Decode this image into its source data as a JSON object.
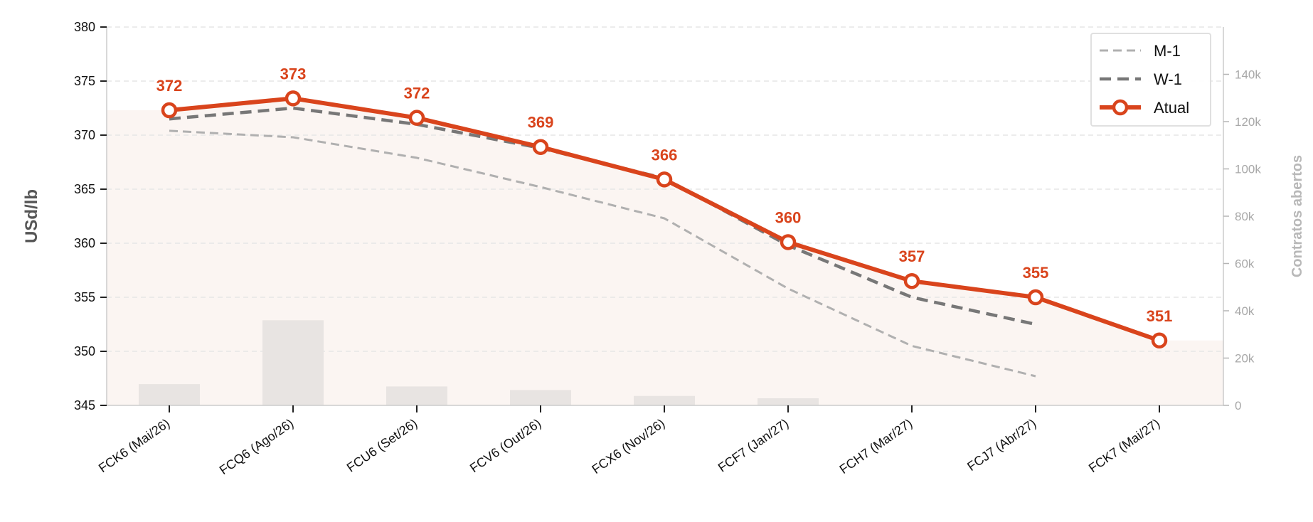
{
  "chart_data": {
    "type": "line",
    "categories": [
      "FCK6 (Mai/26)",
      "FCQ6 (Ago/26)",
      "FCU6 (Set/26)",
      "FCV6 (Out/26)",
      "FCX6 (Nov/26)",
      "FCF7 (Jan/27)",
      "FCH7 (Mar/27)",
      "FCJ7 (Abr/27)",
      "FCK7 (Mai/27)"
    ],
    "ylabel": "USd/lb",
    "ylim": [
      345,
      380
    ],
    "yticks": [
      345,
      350,
      355,
      360,
      365,
      370,
      375,
      380
    ],
    "y2label": "Contratos abertos",
    "y2lim": [
      0,
      160000
    ],
    "y2ticks": [
      0,
      20000,
      40000,
      60000,
      80000,
      100000,
      120000,
      140000
    ],
    "y2tick_labels": [
      "0",
      "20k",
      "40k",
      "60k",
      "80k",
      "100k",
      "120k",
      "140k"
    ],
    "grid": true,
    "legend_position": "top-right",
    "series": [
      {
        "name": "M-1",
        "style": "dashed-thin",
        "color": "#b0b0b0",
        "values": [
          370.4,
          369.8,
          367.9,
          365.2,
          362.3,
          355.8,
          350.5,
          347.7,
          null
        ]
      },
      {
        "name": "W-1",
        "style": "dashed-thick",
        "color": "#777777",
        "values": [
          371.5,
          372.5,
          371.0,
          368.8,
          366.0,
          359.8,
          355.0,
          352.5,
          null
        ]
      },
      {
        "name": "Atual",
        "style": "solid-marker",
        "color": "#d9441c",
        "values": [
          372.3,
          373.4,
          371.6,
          368.9,
          365.9,
          360.1,
          356.5,
          355.0,
          351.0
        ],
        "data_labels": [
          "372",
          "373",
          "372",
          "369",
          "366",
          "360",
          "357",
          "355",
          "351"
        ]
      }
    ],
    "open_interest": {
      "color": "#e8e4e2",
      "values": [
        9000,
        36000,
        8000,
        6500,
        4000,
        3000,
        0,
        0,
        0
      ]
    },
    "fill_color": "#fbf5f2"
  }
}
